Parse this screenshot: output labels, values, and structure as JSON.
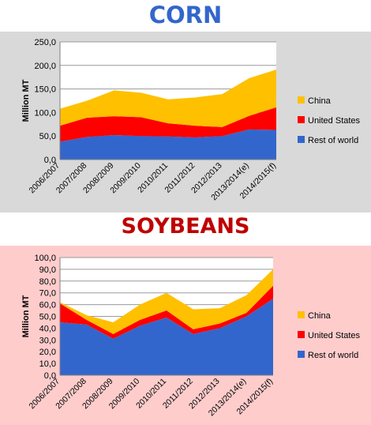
{
  "chart_data": [
    {
      "type": "area",
      "stacked": true,
      "title": "CORN",
      "title_color": "#3366cc",
      "background": "#d9d9d9",
      "ylabel": "Million MT",
      "ylim": [
        0,
        250
      ],
      "yticks": [
        "0,0",
        "50,0",
        "100,0",
        "150,0",
        "200,0",
        "250,0"
      ],
      "ytick_values": [
        0,
        50,
        100,
        150,
        200,
        250
      ],
      "grid": true,
      "legend_position": "right",
      "categories": [
        "2006/2007",
        "2007/2008",
        "2008/2009",
        "2009/2010",
        "2010/2011",
        "2011/2012",
        "2012/2013",
        "2013/2014(e)",
        "2014/2015(f)"
      ],
      "series": [
        {
          "name": "Rest of world",
          "color": "#3366cc",
          "values": [
            38,
            48,
            52,
            50,
            49,
            47,
            50,
            64,
            63
          ]
        },
        {
          "name": "United States",
          "color": "#ff0000",
          "values": [
            34,
            41,
            40,
            40,
            28,
            25,
            19,
            29,
            48
          ]
        },
        {
          "name": "China",
          "color": "#ffc000",
          "values": [
            36,
            36,
            55,
            52,
            51,
            60,
            70,
            80,
            80
          ]
        }
      ]
    },
    {
      "type": "area",
      "stacked": true,
      "title": "SOYBEANS",
      "title_color": "#c00000",
      "background": "#ffcccc",
      "ylabel": "Million MT",
      "ylim": [
        0,
        100
      ],
      "yticks": [
        "0,0",
        "10,0",
        "20,0",
        "30,0",
        "40,0",
        "50,0",
        "60,0",
        "70,0",
        "80,0",
        "90,0",
        "100,0"
      ],
      "ytick_values": [
        0,
        10,
        20,
        30,
        40,
        50,
        60,
        70,
        80,
        90,
        100
      ],
      "grid": true,
      "legend_position": "right",
      "categories": [
        "2006/2007",
        "2007/2008",
        "2008/2009",
        "2009/2010",
        "2010/2011",
        "2011/2012",
        "2012/2013",
        "2013/2014(e)",
        "2014/2015(f)"
      ],
      "series": [
        {
          "name": "Rest of world",
          "color": "#3366cc",
          "values": [
            45,
            43,
            31,
            42,
            49,
            35,
            40,
            50,
            65
          ]
        },
        {
          "name": "United States",
          "color": "#ff0000",
          "values": [
            16,
            4,
            4,
            5,
            6,
            4,
            4,
            3,
            11
          ]
        },
        {
          "name": "China",
          "color": "#ffc000",
          "values": [
            1,
            4,
            10,
            13,
            15,
            17,
            13,
            15,
            14
          ]
        }
      ]
    }
  ]
}
